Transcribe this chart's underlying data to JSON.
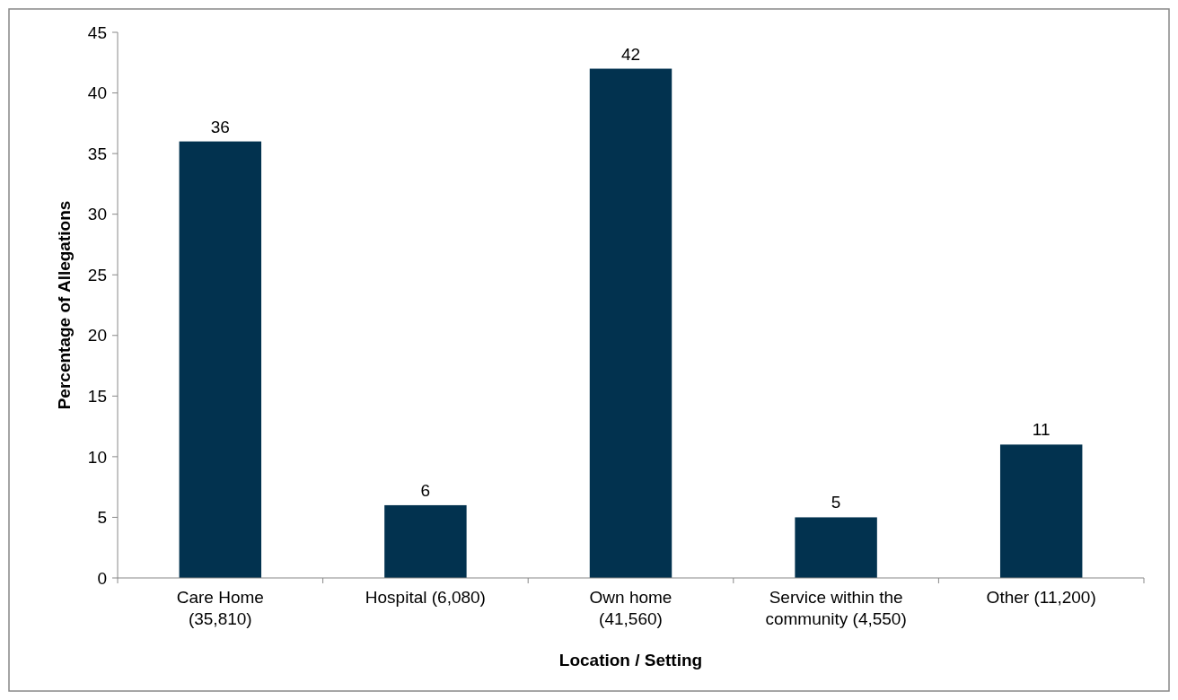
{
  "chart_data": {
    "type": "bar",
    "xlabel": "Location / Setting",
    "ylabel": "Percentage of Allegations",
    "categories": [
      "Care Home\n(35,810)",
      "Hospital (6,080)",
      "Own home\n(41,560)",
      "Service within the\ncommunity (4,550)",
      "Other (11,200)"
    ],
    "values": [
      36,
      6,
      42,
      5,
      11
    ],
    "color": "#02324f",
    "data_labels": true,
    "ylim": [
      0,
      45
    ],
    "yticks": [
      0,
      5,
      10,
      15,
      20,
      25,
      30,
      35,
      40,
      45
    ],
    "grid": false
  }
}
